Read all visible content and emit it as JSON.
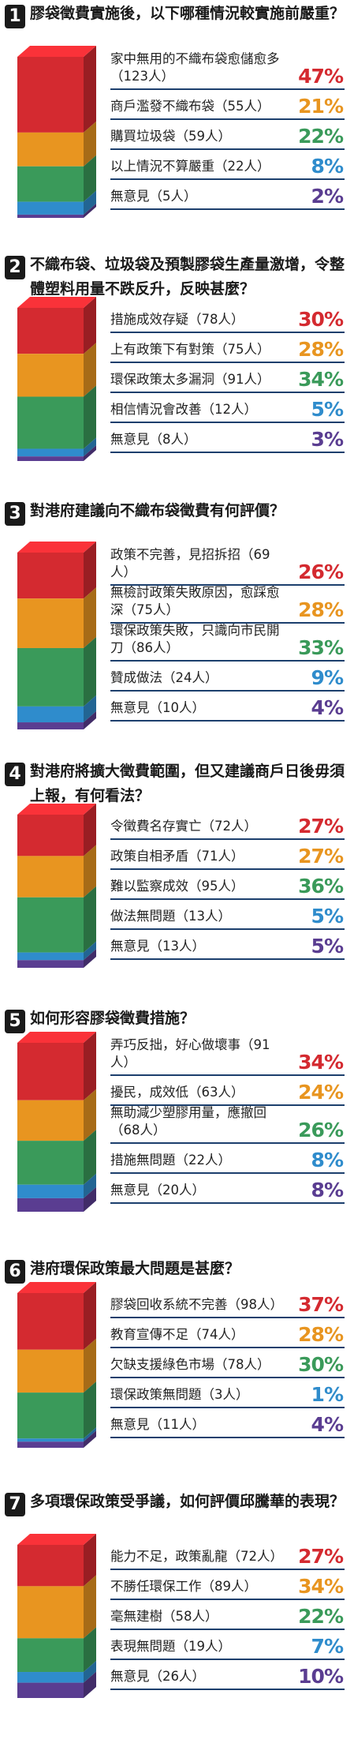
{
  "colors": {
    "red": "#d42a30",
    "orange": "#f2a72c",
    "green": "#3a9a5a",
    "blue": "#2f8ccc",
    "purple": "#5a3d91",
    "rule": "#1c3f6d"
  },
  "chart_data": [
    {
      "type": "bar",
      "number": "1",
      "title": "膠袋徵費實施後，以下哪種情況較實施前嚴重？",
      "options": [
        {
          "label": "家中無用的不織布袋愈儲愈多（123人）",
          "value": 47,
          "pct_text": "47%",
          "color": "#d42a30"
        },
        {
          "label": "商戶濫發不織布袋（55人）",
          "value": 21,
          "pct_text": "21%",
          "color": "#e89520"
        },
        {
          "label": "購買垃圾袋（59人）",
          "value": 22,
          "pct_text": "22%",
          "color": "#3a9a5a"
        },
        {
          "label": "以上情況不算嚴重（22人）",
          "value": 8,
          "pct_text": "8%",
          "color": "#2f8ccc"
        },
        {
          "label": "無意見（5人）",
          "value": 2,
          "pct_text": "2%",
          "color": "#5a3d91"
        }
      ]
    },
    {
      "type": "bar",
      "number": "2",
      "title": "不織布袋、垃圾袋及預製膠袋生產量激增，令整體塑料用量不跌反升，反映甚麼？",
      "options": [
        {
          "label": "措施成效存疑（78人）",
          "value": 30,
          "pct_text": "30%",
          "color": "#d42a30"
        },
        {
          "label": "上有政策下有對策（75人）",
          "value": 28,
          "pct_text": "28%",
          "color": "#e89520"
        },
        {
          "label": "環保政策太多漏洞（91人）",
          "value": 34,
          "pct_text": "34%",
          "color": "#3a9a5a"
        },
        {
          "label": "相信情況會改善（12人）",
          "value": 5,
          "pct_text": "5%",
          "color": "#2f8ccc"
        },
        {
          "label": "無意見（8人）",
          "value": 3,
          "pct_text": "3%",
          "color": "#5a3d91"
        }
      ]
    },
    {
      "type": "bar",
      "number": "3",
      "title": "對港府建議向不織布袋徵費有何評價？",
      "options": [
        {
          "label": "政策不完善，見招拆招（69人）",
          "value": 26,
          "pct_text": "26%",
          "color": "#d42a30"
        },
        {
          "label": "無檢討政策失敗原因，愈踩愈深（75人）",
          "value": 28,
          "pct_text": "28%",
          "color": "#e89520"
        },
        {
          "label": "環保政策失敗，只識向市民開刀（86人）",
          "value": 33,
          "pct_text": "33%",
          "color": "#3a9a5a"
        },
        {
          "label": "贊成做法（24人）",
          "value": 9,
          "pct_text": "9%",
          "color": "#2f8ccc"
        },
        {
          "label": "無意見（10人）",
          "value": 4,
          "pct_text": "4%",
          "color": "#5a3d91"
        }
      ]
    },
    {
      "type": "bar",
      "number": "4",
      "title": "對港府將擴大徵費範圍，但又建議商戶日後毋須上報，有何看法？",
      "options": [
        {
          "label": "令徵費名存實亡（72人）",
          "value": 27,
          "pct_text": "27%",
          "color": "#d42a30"
        },
        {
          "label": "政策自相矛盾（71人）",
          "value": 27,
          "pct_text": "27%",
          "color": "#e89520"
        },
        {
          "label": "難以監察成效（95人）",
          "value": 36,
          "pct_text": "36%",
          "color": "#3a9a5a"
        },
        {
          "label": "做法無問題（13人）",
          "value": 5,
          "pct_text": "5%",
          "color": "#2f8ccc"
        },
        {
          "label": "無意見（13人）",
          "value": 5,
          "pct_text": "5%",
          "color": "#5a3d91"
        }
      ]
    },
    {
      "type": "bar",
      "number": "5",
      "title": "如何形容膠袋徵費措施？",
      "options": [
        {
          "label": "弄巧反拙，好心做壞事（91人）",
          "value": 34,
          "pct_text": "34%",
          "color": "#d42a30"
        },
        {
          "label": "擾民，成效低（63人）",
          "value": 24,
          "pct_text": "24%",
          "color": "#e89520"
        },
        {
          "label": "無助減少塑膠用量，應撤回（68人）",
          "value": 26,
          "pct_text": "26%",
          "color": "#3a9a5a"
        },
        {
          "label": "措施無問題（22人）",
          "value": 8,
          "pct_text": "8%",
          "color": "#2f8ccc"
        },
        {
          "label": "無意見（20人）",
          "value": 8,
          "pct_text": "8%",
          "color": "#5a3d91"
        }
      ]
    },
    {
      "type": "bar",
      "number": "6",
      "title": "港府環保政策最大問題是甚麼？",
      "options": [
        {
          "label": "膠袋回收系統不完善（98人）",
          "value": 37,
          "pct_text": "37%",
          "color": "#d42a30"
        },
        {
          "label": "教育宣傳不足（74人）",
          "value": 28,
          "pct_text": "28%",
          "color": "#e89520"
        },
        {
          "label": "欠缺支援綠色市場（78人）",
          "value": 30,
          "pct_text": "30%",
          "color": "#3a9a5a"
        },
        {
          "label": "環保政策無問題（3人）",
          "value": 1,
          "pct_text": "1%",
          "color": "#2f8ccc"
        },
        {
          "label": "無意見（11人）",
          "value": 4,
          "pct_text": "4%",
          "color": "#5a3d91"
        }
      ]
    },
    {
      "type": "bar",
      "number": "7",
      "title": "多項環保政策受爭議，如何評價邱騰華的表現？",
      "options": [
        {
          "label": "能力不足，政策亂龍（72人）",
          "value": 27,
          "pct_text": "27%",
          "color": "#d42a30"
        },
        {
          "label": "不勝任環保工作（89人）",
          "value": 34,
          "pct_text": "34%",
          "color": "#e89520"
        },
        {
          "label": "毫無建樹（58人）",
          "value": 22,
          "pct_text": "22%",
          "color": "#3a9a5a"
        },
        {
          "label": "表現無問題（19人）",
          "value": 7,
          "pct_text": "7%",
          "color": "#2f8ccc"
        },
        {
          "label": "無意見（26人）",
          "value": 10,
          "pct_text": "10%",
          "color": "#5a3d91"
        }
      ]
    }
  ]
}
